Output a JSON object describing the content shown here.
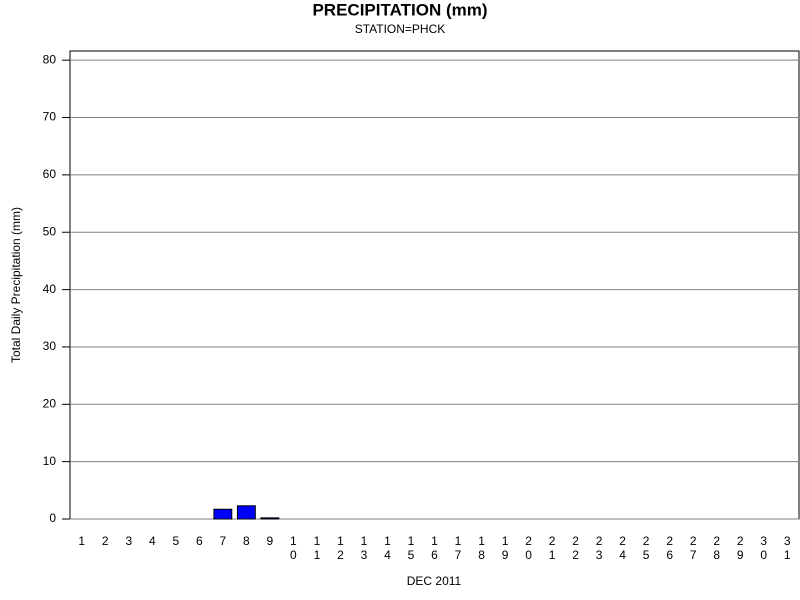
{
  "chart_data": {
    "type": "bar",
    "title": "PRECIPITATION (mm)",
    "subtitle": "STATION=PHCK",
    "y_label": "Total Daily Precipitation (mm)",
    "x_label": "DEC 2011",
    "categories": [
      "1",
      "2",
      "3",
      "4",
      "5",
      "6",
      "7",
      "8",
      "9",
      "10",
      "11",
      "12",
      "13",
      "14",
      "15",
      "16",
      "17",
      "18",
      "19",
      "20",
      "21",
      "22",
      "23",
      "24",
      "25",
      "26",
      "27",
      "28",
      "29",
      "30",
      "31"
    ],
    "values": [
      0,
      0,
      0,
      0,
      0,
      0,
      1.7,
      2.3,
      0.2,
      0,
      0,
      0,
      0,
      0,
      0,
      0,
      0,
      0,
      0,
      0,
      0,
      0,
      0,
      0,
      0,
      0,
      0,
      0,
      0,
      0,
      0
    ],
    "color": "#0000ff",
    "ylim": [
      0,
      81.6
    ],
    "yticks": [
      0,
      10,
      20,
      30,
      40,
      50,
      60,
      70,
      80
    ],
    "grid": true
  }
}
